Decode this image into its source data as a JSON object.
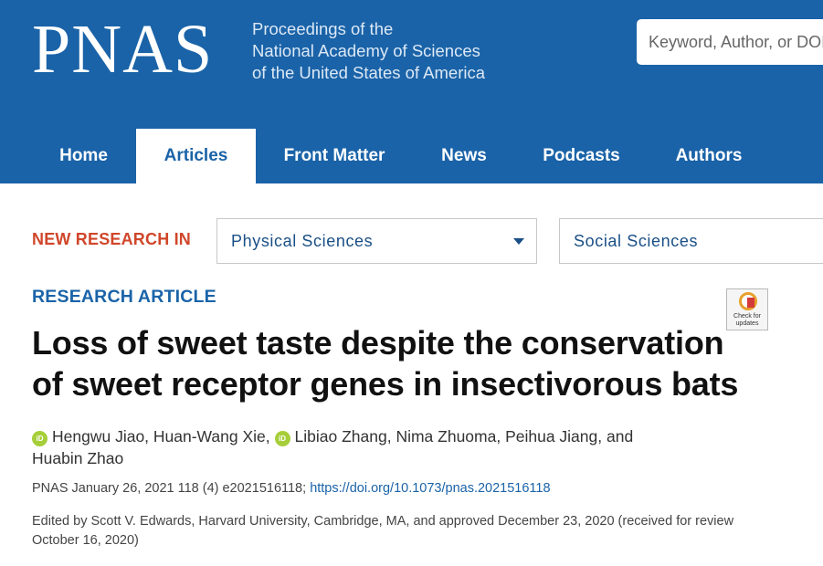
{
  "header": {
    "logo": "PNAS",
    "tagline": [
      "Proceedings of the",
      "National Academy of Sciences",
      "of the United States of America"
    ],
    "search_placeholder": "Keyword, Author, or DOI"
  },
  "nav": {
    "items": [
      {
        "label": "Home"
      },
      {
        "label": "Articles",
        "active": true
      },
      {
        "label": "Front Matter"
      },
      {
        "label": "News"
      },
      {
        "label": "Podcasts"
      },
      {
        "label": "Authors"
      }
    ]
  },
  "new_research": {
    "label": "NEW RESEARCH IN",
    "select1": "Physical Sciences",
    "select2": "Social Sciences"
  },
  "article": {
    "type": "RESEARCH ARTICLE",
    "check_updates": "Check for updates",
    "title": "Loss of sweet taste despite the conservation of sweet receptor genes in insectivorous bats",
    "authors": {
      "line1_a": "Hengwu Jiao, Huan-Wang Xie,",
      "line1_b": "Libiao Zhang, Nima Zhuoma, Peihua Jiang, and",
      "line2": "Huabin Zhao",
      "orcid_label": "iD"
    },
    "citation_text": "PNAS January 26, 2021 118 (4) e2021516118;",
    "doi": "https://doi.org/10.1073/pnas.2021516118",
    "edited_by": "Edited by Scott V. Edwards, Harvard University, Cambridge, MA, and approved December 23, 2020 (received for review October 16, 2020)"
  },
  "colors": {
    "header_blue": "#1a63a8",
    "accent_red": "#d0462a",
    "orcid_green": "#a6ce39"
  }
}
